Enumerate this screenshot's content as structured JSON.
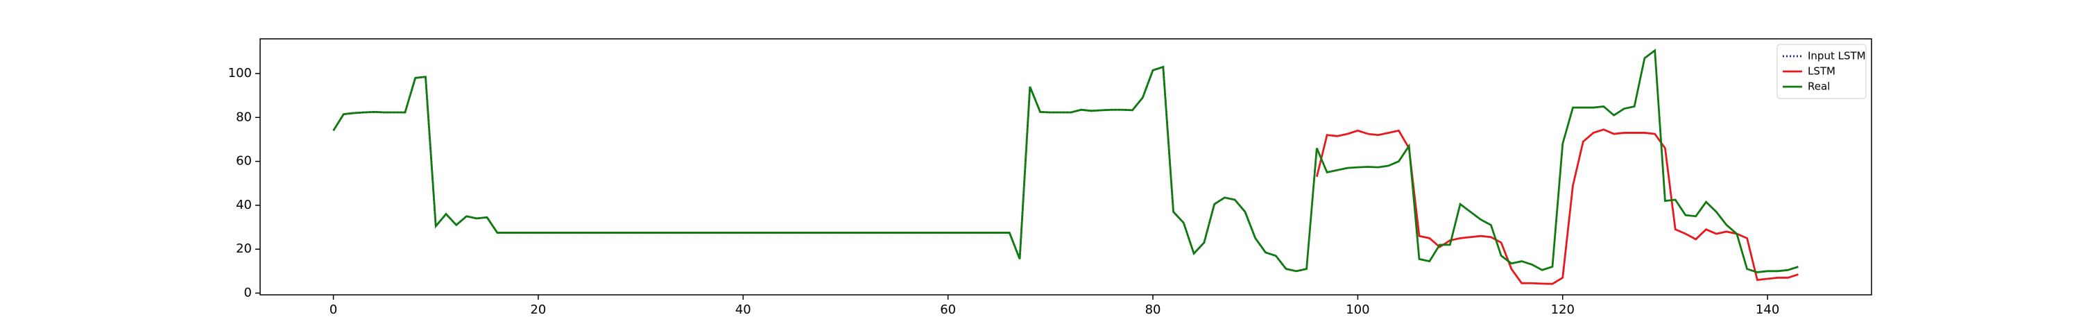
{
  "chart_data": {
    "type": "line",
    "x": [
      0,
      1,
      2,
      3,
      4,
      5,
      6,
      7,
      8,
      9,
      10,
      11,
      12,
      13,
      14,
      15,
      16,
      17,
      18,
      19,
      20,
      21,
      22,
      23,
      24,
      25,
      26,
      27,
      28,
      29,
      30,
      31,
      32,
      33,
      34,
      35,
      36,
      37,
      38,
      39,
      40,
      41,
      42,
      43,
      44,
      45,
      46,
      47,
      48,
      49,
      50,
      51,
      52,
      53,
      54,
      55,
      56,
      57,
      58,
      59,
      60,
      61,
      62,
      63,
      64,
      65,
      66,
      67,
      68,
      69,
      70,
      71,
      72,
      73,
      74,
      75,
      76,
      77,
      78,
      79,
      80,
      81,
      82,
      83,
      84,
      85,
      86,
      87,
      88,
      89,
      90,
      91,
      92,
      93,
      94,
      95,
      96,
      97,
      98,
      99,
      100,
      101,
      102,
      103,
      104,
      105,
      106,
      107,
      108,
      109,
      110,
      111,
      112,
      113,
      114,
      115,
      116,
      117,
      118,
      119,
      120,
      121,
      122,
      123,
      124,
      125,
      126,
      127,
      128,
      129,
      130,
      131,
      132,
      133,
      134,
      135,
      136,
      137,
      138,
      139,
      140,
      141,
      142,
      143
    ],
    "series": [
      {
        "name": "Input LSTM",
        "color": "#1f1f8f",
        "linestyle": "dotted",
        "values": [
          74,
          81.5,
          82,
          82.3,
          82.5,
          82.3,
          82.3,
          82.3,
          98,
          98.5,
          30.5,
          36,
          31,
          35,
          34,
          34.5,
          27.5,
          27.5,
          27.5,
          27.5,
          27.5,
          27.5,
          27.5,
          27.5,
          27.5,
          27.5,
          27.5,
          27.5,
          27.5,
          27.5,
          27.5,
          27.5,
          27.5,
          27.5,
          27.5,
          27.5,
          27.5,
          27.5,
          27.5,
          27.5,
          27.5,
          27.5,
          27.5,
          27.5,
          27.5,
          27.5,
          27.5,
          27.5,
          27.5,
          27.5,
          27.5,
          27.5,
          27.5,
          27.5,
          27.5,
          27.5,
          27.5,
          27.5,
          27.5,
          27.5,
          27.5,
          27.5,
          27.5,
          27.5,
          27.5,
          27.5,
          27.5,
          15.5,
          94,
          82.5,
          82.3,
          82.3,
          82.3,
          83.5,
          83,
          83.3,
          83.5,
          83.5,
          83.3,
          89,
          101.5,
          103,
          37,
          32,
          18,
          23,
          40.5,
          43.5,
          42.5,
          37,
          25,
          18.5,
          17,
          11,
          10,
          11,
          null,
          null,
          null,
          null,
          null,
          null,
          null,
          null,
          null,
          null,
          null,
          null,
          null,
          null,
          null,
          null,
          null,
          null,
          null,
          null,
          null,
          null,
          null,
          null,
          null,
          null,
          null,
          null,
          null,
          null,
          null,
          null,
          null,
          null,
          null,
          null,
          null,
          null,
          null,
          null,
          null,
          null,
          null,
          null,
          null,
          null,
          null,
          null
        ]
      },
      {
        "name": "LSTM",
        "color": "#e8191c",
        "linestyle": "solid",
        "values": [
          null,
          null,
          null,
          null,
          null,
          null,
          null,
          null,
          null,
          null,
          null,
          null,
          null,
          null,
          null,
          null,
          null,
          null,
          null,
          null,
          null,
          null,
          null,
          null,
          null,
          null,
          null,
          null,
          null,
          null,
          null,
          null,
          null,
          null,
          null,
          null,
          null,
          null,
          null,
          null,
          null,
          null,
          null,
          null,
          null,
          null,
          null,
          null,
          null,
          null,
          null,
          null,
          null,
          null,
          null,
          null,
          null,
          null,
          null,
          null,
          null,
          null,
          null,
          null,
          null,
          null,
          null,
          null,
          null,
          null,
          null,
          null,
          null,
          null,
          null,
          null,
          null,
          null,
          null,
          null,
          null,
          null,
          null,
          null,
          null,
          null,
          null,
          null,
          null,
          null,
          null,
          null,
          null,
          null,
          null,
          null,
          53,
          72,
          71.5,
          72.5,
          74,
          72.5,
          72,
          73,
          74,
          66,
          26,
          25,
          21,
          24,
          25,
          25.5,
          26,
          25.5,
          23,
          11,
          4.5,
          4.5,
          4.3,
          4.2,
          7,
          49,
          69,
          73,
          74.5,
          72.5,
          73,
          73,
          73,
          72.5,
          66,
          29,
          27,
          24.5,
          29,
          27,
          28,
          27,
          25,
          6,
          6.5,
          7,
          7,
          8.5
        ]
      },
      {
        "name": "Real",
        "color": "#0f7a0f",
        "linestyle": "solid",
        "values": [
          74,
          81.5,
          82,
          82.3,
          82.5,
          82.3,
          82.3,
          82.3,
          98,
          98.5,
          30.5,
          36,
          31,
          35,
          34,
          34.5,
          27.5,
          27.5,
          27.5,
          27.5,
          27.5,
          27.5,
          27.5,
          27.5,
          27.5,
          27.5,
          27.5,
          27.5,
          27.5,
          27.5,
          27.5,
          27.5,
          27.5,
          27.5,
          27.5,
          27.5,
          27.5,
          27.5,
          27.5,
          27.5,
          27.5,
          27.5,
          27.5,
          27.5,
          27.5,
          27.5,
          27.5,
          27.5,
          27.5,
          27.5,
          27.5,
          27.5,
          27.5,
          27.5,
          27.5,
          27.5,
          27.5,
          27.5,
          27.5,
          27.5,
          27.5,
          27.5,
          27.5,
          27.5,
          27.5,
          27.5,
          27.5,
          15.5,
          94,
          82.5,
          82.3,
          82.3,
          82.3,
          83.5,
          83,
          83.3,
          83.5,
          83.5,
          83.3,
          89,
          101.5,
          103,
          37,
          32,
          18,
          23,
          40.5,
          43.5,
          42.5,
          37,
          25,
          18.5,
          17,
          11,
          10,
          11,
          66,
          55,
          56,
          57,
          57.3,
          57.5,
          57.3,
          58,
          60,
          67,
          15.5,
          14.5,
          22,
          22,
          40.5,
          37,
          33.5,
          31,
          17,
          13.5,
          14.5,
          13,
          10.5,
          12,
          68,
          84.5,
          84.5,
          84.5,
          85,
          81,
          84,
          85,
          107,
          110.5,
          42,
          42.5,
          35.5,
          35,
          41.5,
          37,
          31,
          27,
          11,
          9.5,
          10,
          10,
          10.5,
          12
        ]
      }
    ],
    "xlim": [
      -7.15,
      150.15
    ],
    "ylim": [
      -0.8,
      115.8
    ],
    "xticks": [
      0,
      20,
      40,
      60,
      80,
      100,
      120,
      140
    ],
    "yticks": [
      0,
      20,
      40,
      60,
      80,
      100
    ],
    "legend": "upper right"
  }
}
